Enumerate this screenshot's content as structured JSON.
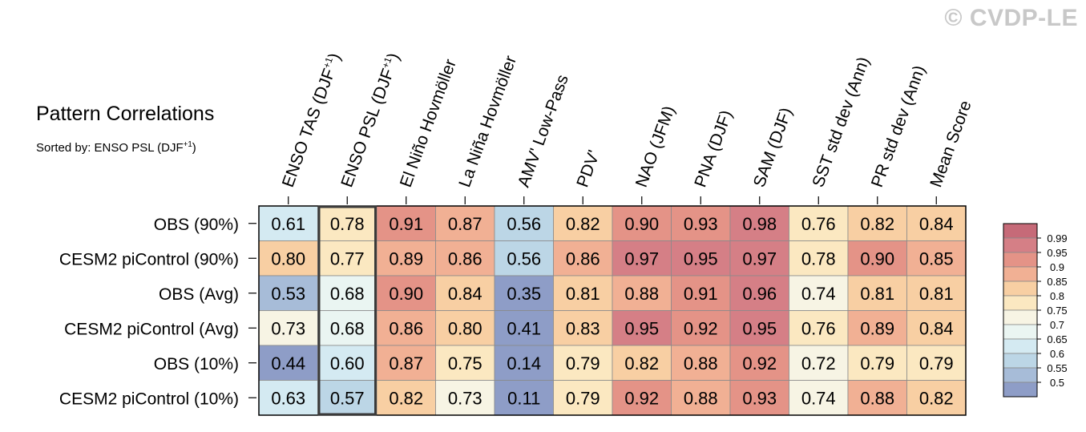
{
  "title": "Pattern Correlations",
  "subtitle_prefix": "Sorted by: ENSO PSL (DJF",
  "subtitle_sup": "+1",
  "subtitle_suffix": ")",
  "copyright": "© CVDP-LE",
  "highlight_column": 1,
  "chart_data": {
    "type": "heatmap",
    "columns": [
      {
        "text": "ENSO TAS (DJF",
        "sup": "+1",
        "after": ")"
      },
      {
        "text": "ENSO PSL (DJF",
        "sup": "+1",
        "after": ")"
      },
      {
        "text": "El Niño Hovmöller"
      },
      {
        "text": "La Niña Hovmöller"
      },
      {
        "text": "AMV' Low-Pass"
      },
      {
        "text": "PDV'"
      },
      {
        "text": "NAO (JFM)"
      },
      {
        "text": "PNA (DJF)"
      },
      {
        "text": "SAM (DJF)"
      },
      {
        "text": "SST std dev (Ann)"
      },
      {
        "text": "PR std dev (Ann)"
      },
      {
        "text": "Mean Score"
      }
    ],
    "rows": [
      "OBS (90%)",
      "CESM2 piControl (90%)",
      "OBS (Avg)",
      "CESM2 piControl (Avg)",
      "OBS (10%)",
      "CESM2 piControl (10%)"
    ],
    "values": [
      [
        0.61,
        0.78,
        0.91,
        0.87,
        0.56,
        0.82,
        0.9,
        0.93,
        0.98,
        0.76,
        0.82,
        0.84
      ],
      [
        0.8,
        0.77,
        0.89,
        0.86,
        0.56,
        0.86,
        0.97,
        0.95,
        0.97,
        0.78,
        0.9,
        0.85
      ],
      [
        0.53,
        0.68,
        0.9,
        0.84,
        0.35,
        0.81,
        0.88,
        0.91,
        0.96,
        0.74,
        0.81,
        0.81
      ],
      [
        0.73,
        0.68,
        0.86,
        0.8,
        0.41,
        0.83,
        0.95,
        0.92,
        0.95,
        0.76,
        0.89,
        0.84
      ],
      [
        0.44,
        0.6,
        0.87,
        0.75,
        0.14,
        0.79,
        0.82,
        0.88,
        0.92,
        0.72,
        0.79,
        0.79
      ],
      [
        0.63,
        0.57,
        0.82,
        0.73,
        0.11,
        0.79,
        0.92,
        0.88,
        0.93,
        0.74,
        0.88,
        0.82
      ]
    ],
    "colorbar": {
      "levels": [
        "0.99",
        "0.95",
        "0.9",
        "0.85",
        "0.8",
        "0.75",
        "0.7",
        "0.65",
        "0.6",
        "0.55",
        "0.5"
      ],
      "thresholds": [
        0.5,
        0.55,
        0.6,
        0.65,
        0.7,
        0.75,
        0.8,
        0.85,
        0.9,
        0.95,
        0.99
      ],
      "colors": [
        "#8e9dc7",
        "#a7bcd8",
        "#bcd6e6",
        "#d4eaf2",
        "#eaf5f2",
        "#f7f4e4",
        "#fbe8c1",
        "#f8cfa3",
        "#f1b094",
        "#e49387",
        "#d57f86",
        "#c66a78"
      ]
    }
  }
}
